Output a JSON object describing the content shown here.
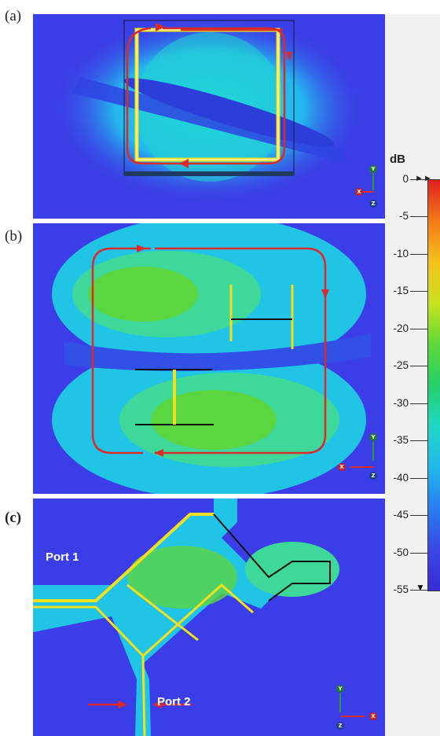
{
  "panels": [
    {
      "label": "(a)"
    },
    {
      "label": "(b)"
    },
    {
      "label": "(c)",
      "port1": "Port 1",
      "port2": "Port 2"
    }
  ],
  "axes": {
    "x": "X",
    "y": "Y",
    "z": "Z"
  },
  "colorbar": {
    "unit": "dB",
    "ticks": [
      "0",
      "-5",
      "-10",
      "-15",
      "-20",
      "-25",
      "-30",
      "-35",
      "-40",
      "-45",
      "-50",
      "-55"
    ],
    "colors": [
      "#e02020",
      "#f27a18",
      "#f5c21a",
      "#c9e21f",
      "#5fd83a",
      "#25d06c",
      "#1ed8c4",
      "#22b8ec",
      "#2a7df0",
      "#3a47e4",
      "#3a2bd6"
    ]
  },
  "colors": {
    "background_field": "#3b3ee6",
    "arrow": "#d92b2b"
  }
}
